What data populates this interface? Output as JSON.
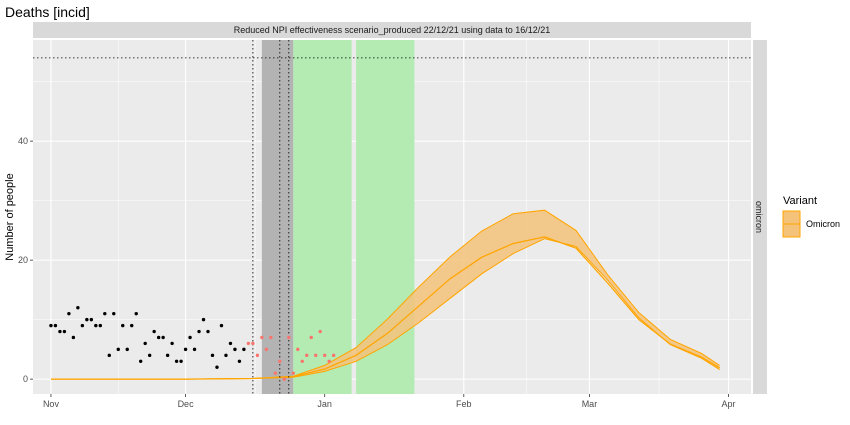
{
  "chart_data": {
    "type": "line",
    "title": "Deaths [incid]",
    "strip_label": "Reduced NPI effectiveness scenario_produced 22/12/21 using data to 16/12/21",
    "facet_label": "omicron",
    "ylabel": "Number of people",
    "xlabel": "",
    "x_ticks": [
      {
        "date": "2021-11-01",
        "label": "Nov"
      },
      {
        "date": "2021-12-01",
        "label": "Dec"
      },
      {
        "date": "2022-01-01",
        "label": "Jan"
      },
      {
        "date": "2022-02-01",
        "label": "Feb"
      },
      {
        "date": "2022-03-01",
        "label": "Mar"
      },
      {
        "date": "2022-04-01",
        "label": "Apr"
      }
    ],
    "y_ticks": [
      0,
      20,
      40
    ],
    "xlim": [
      "2021-10-28",
      "2022-04-06"
    ],
    "ylim": [
      -2.5,
      57
    ],
    "grid": true,
    "legend": {
      "title": "Variant",
      "placement": "right",
      "entries": [
        "Omicron"
      ]
    },
    "colors": {
      "series": "#FFA500",
      "ribbon": "#F5C27A",
      "observed": "#000000",
      "unused_obs": "#F8766D",
      "shade_grey": "#B3B3B3",
      "shade_green": "#B3EBB3",
      "panel": "#EBEBEB",
      "strip": "#D9D9D9"
    },
    "hline": 54,
    "vlines": [
      "2021-12-16",
      "2021-12-22",
      "2021-12-24"
    ],
    "grey_band": [
      "2021-12-18",
      "2021-12-25"
    ],
    "green_bands": [
      [
        "2021-12-25",
        "2022-01-07"
      ],
      [
        "2022-01-08",
        "2022-01-21"
      ]
    ],
    "observed_points": [
      {
        "x": "2021-11-01",
        "y": 9
      },
      {
        "x": "2021-11-02",
        "y": 9
      },
      {
        "x": "2021-11-03",
        "y": 8
      },
      {
        "x": "2021-11-04",
        "y": 8
      },
      {
        "x": "2021-11-05",
        "y": 11
      },
      {
        "x": "2021-11-06",
        "y": 7
      },
      {
        "x": "2021-11-07",
        "y": 12
      },
      {
        "x": "2021-11-08",
        "y": 9
      },
      {
        "x": "2021-11-09",
        "y": 10
      },
      {
        "x": "2021-11-10",
        "y": 10
      },
      {
        "x": "2021-11-11",
        "y": 9
      },
      {
        "x": "2021-11-12",
        "y": 9
      },
      {
        "x": "2021-11-13",
        "y": 11
      },
      {
        "x": "2021-11-14",
        "y": 4
      },
      {
        "x": "2021-11-15",
        "y": 11
      },
      {
        "x": "2021-11-16",
        "y": 5
      },
      {
        "x": "2021-11-17",
        "y": 9
      },
      {
        "x": "2021-11-18",
        "y": 5
      },
      {
        "x": "2021-11-19",
        "y": 9
      },
      {
        "x": "2021-11-20",
        "y": 11
      },
      {
        "x": "2021-11-21",
        "y": 3
      },
      {
        "x": "2021-11-22",
        "y": 6
      },
      {
        "x": "2021-11-23",
        "y": 4
      },
      {
        "x": "2021-11-24",
        "y": 8
      },
      {
        "x": "2021-11-25",
        "y": 7
      },
      {
        "x": "2021-11-26",
        "y": 7
      },
      {
        "x": "2021-11-27",
        "y": 4
      },
      {
        "x": "2021-11-28",
        "y": 6
      },
      {
        "x": "2021-11-29",
        "y": 3
      },
      {
        "x": "2021-11-30",
        "y": 3
      },
      {
        "x": "2021-12-01",
        "y": 5
      },
      {
        "x": "2021-12-02",
        "y": 7
      },
      {
        "x": "2021-12-03",
        "y": 5
      },
      {
        "x": "2021-12-04",
        "y": 8
      },
      {
        "x": "2021-12-05",
        "y": 10
      },
      {
        "x": "2021-12-06",
        "y": 8
      },
      {
        "x": "2021-12-07",
        "y": 4
      },
      {
        "x": "2021-12-08",
        "y": 2
      },
      {
        "x": "2021-12-09",
        "y": 9
      },
      {
        "x": "2021-12-10",
        "y": 4
      },
      {
        "x": "2021-12-11",
        "y": 6
      },
      {
        "x": "2021-12-12",
        "y": 5
      },
      {
        "x": "2021-12-13",
        "y": 3
      },
      {
        "x": "2021-12-14",
        "y": 5
      }
    ],
    "unused_points": [
      {
        "x": "2021-12-15",
        "y": 6
      },
      {
        "x": "2021-12-16",
        "y": 6
      },
      {
        "x": "2021-12-17",
        "y": 4
      },
      {
        "x": "2021-12-18",
        "y": 7
      },
      {
        "x": "2021-12-19",
        "y": 5
      },
      {
        "x": "2021-12-20",
        "y": 7
      },
      {
        "x": "2021-12-21",
        "y": 1
      },
      {
        "x": "2021-12-22",
        "y": 3
      },
      {
        "x": "2021-12-23",
        "y": 0
      },
      {
        "x": "2021-12-24",
        "y": 7
      },
      {
        "x": "2021-12-25",
        "y": 1
      },
      {
        "x": "2021-12-26",
        "y": 5
      },
      {
        "x": "2021-12-27",
        "y": 3
      },
      {
        "x": "2021-12-28",
        "y": 4
      },
      {
        "x": "2021-12-29",
        "y": 7
      },
      {
        "x": "2021-12-30",
        "y": 4
      },
      {
        "x": "2021-12-31",
        "y": 8
      },
      {
        "x": "2022-01-01",
        "y": 4
      },
      {
        "x": "2022-01-02",
        "y": 3
      },
      {
        "x": "2022-01-03",
        "y": 4
      }
    ],
    "series": [
      {
        "name": "Omicron",
        "x": [
          "2021-11-01",
          "2021-12-01",
          "2021-12-16",
          "2021-12-25",
          "2022-01-01",
          "2022-01-08",
          "2022-01-15",
          "2022-01-22",
          "2022-01-29",
          "2022-02-05",
          "2022-02-12",
          "2022-02-19",
          "2022-02-26",
          "2022-03-05",
          "2022-03-12",
          "2022-03-19",
          "2022-03-26",
          "2022-03-30"
        ],
        "lower": [
          0,
          0,
          0.1,
          0.3,
          1.3,
          3.0,
          5.8,
          9.5,
          13.6,
          17.7,
          21.1,
          23.6,
          22.3,
          16.7,
          10.3,
          5.8,
          3.5,
          1.6
        ],
        "median": [
          0,
          0,
          0.1,
          0.4,
          1.7,
          4.0,
          7.7,
          12.3,
          16.9,
          20.5,
          22.8,
          23.9,
          22.0,
          16.2,
          10.0,
          5.9,
          3.7,
          1.9
        ],
        "upper": [
          0,
          0,
          0.1,
          0.5,
          2.3,
          5.3,
          10.1,
          15.5,
          20.6,
          24.9,
          27.8,
          28.4,
          25.0,
          17.6,
          11.2,
          6.7,
          4.3,
          2.3
        ]
      }
    ]
  }
}
